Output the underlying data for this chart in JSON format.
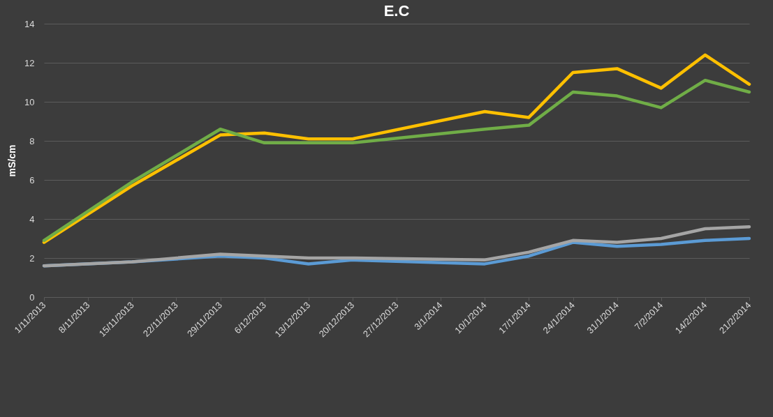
{
  "chart_data": {
    "type": "line",
    "title": "E.C",
    "ylabel": "mS/cm",
    "x": [
      "2013-11-01",
      "2013-11-15",
      "2013-11-29",
      "2013-12-06",
      "2013-12-13",
      "2013-12-20",
      "2014-01-10",
      "2014-01-17",
      "2014-01-24",
      "2014-01-31",
      "2014-02-07",
      "2014-02-14",
      "2014-02-21"
    ],
    "series": [
      {
        "color": "#ffc000",
        "values": [
          2.8,
          5.7,
          8.3,
          8.4,
          8.1,
          8.1,
          9.5,
          9.2,
          11.5,
          11.7,
          10.7,
          12.4,
          10.9
        ]
      },
      {
        "color": "#70ad47",
        "values": [
          2.9,
          5.9,
          8.6,
          7.9,
          7.9,
          7.9,
          8.6,
          8.8,
          10.5,
          10.3,
          9.7,
          11.1,
          10.5
        ]
      },
      {
        "color": "#5b9bd5",
        "values": [
          1.6,
          1.8,
          2.1,
          2.0,
          1.7,
          1.9,
          1.7,
          2.1,
          2.8,
          2.6,
          2.7,
          2.9,
          3.0
        ]
      },
      {
        "color": "#a5a5a5",
        "values": [
          1.6,
          1.8,
          2.2,
          2.1,
          2.0,
          2.0,
          1.9,
          2.3,
          2.9,
          2.8,
          3.0,
          3.5,
          3.6
        ]
      }
    ],
    "xlim": [
      "2013-11-01",
      "2014-02-21"
    ],
    "xticks": [
      {
        "value": "2013-11-01",
        "label": "1/11/2013"
      },
      {
        "value": "2013-11-08",
        "label": "8/11/2013"
      },
      {
        "value": "2013-11-15",
        "label": "15/11/2013"
      },
      {
        "value": "2013-11-22",
        "label": "22/11/2013"
      },
      {
        "value": "2013-11-29",
        "label": "29/11/2013"
      },
      {
        "value": "2013-12-06",
        "label": "6/12/2013"
      },
      {
        "value": "2013-12-13",
        "label": "13/12/2013"
      },
      {
        "value": "2013-12-20",
        "label": "20/12/2013"
      },
      {
        "value": "2013-12-27",
        "label": "27/12/2013"
      },
      {
        "value": "2014-01-03",
        "label": "3/1/2014"
      },
      {
        "value": "2014-01-10",
        "label": "10/1/2014"
      },
      {
        "value": "2014-01-17",
        "label": "17/1/2014"
      },
      {
        "value": "2014-01-24",
        "label": "24/1/2014"
      },
      {
        "value": "2014-01-31",
        "label": "31/1/2014"
      },
      {
        "value": "2014-02-07",
        "label": "7/2/2014"
      },
      {
        "value": "2014-02-14",
        "label": "14/2/2014"
      },
      {
        "value": "2014-02-21",
        "label": "21/2/2014"
      }
    ],
    "ylim": [
      0,
      14
    ],
    "yticks": [
      0,
      2,
      4,
      6,
      8,
      10,
      12,
      14
    ],
    "grid": "y",
    "marker": "none",
    "line_style": "solid"
  }
}
